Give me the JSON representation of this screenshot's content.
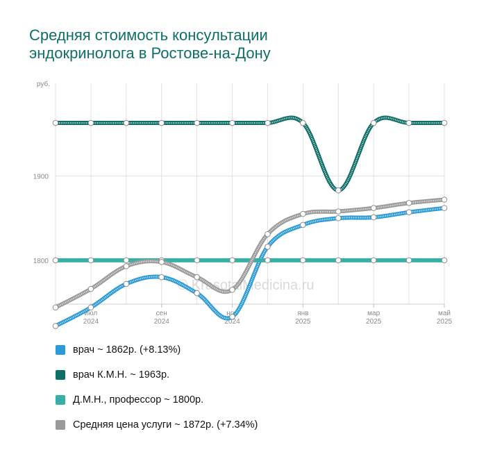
{
  "title": {
    "line1": "Средняя стоимость консультации",
    "line2": "эндокринолога в Ростове-на-Дону"
  },
  "watermark": "© KrasotaiMedicina.ru",
  "chart_data": {
    "type": "line",
    "ylabel": "руб.",
    "yticks": [
      1800,
      1900
    ],
    "ylim": [
      1748,
      2010
    ],
    "x": [
      "2024-06",
      "2024-07",
      "2024-08",
      "2024-09",
      "2024-10",
      "2024-11",
      "2024-12",
      "2025-01",
      "2025-02",
      "2025-03",
      "2025-04",
      "2025-05"
    ],
    "xticks": [
      {
        "label": "июл",
        "year": "2024",
        "index": 1
      },
      {
        "label": "сен",
        "year": "2024",
        "index": 3
      },
      {
        "label": "ноя",
        "year": "2024",
        "index": 5
      },
      {
        "label": "янв",
        "year": "2025",
        "index": 7
      },
      {
        "label": "мар",
        "year": "2025",
        "index": 9
      },
      {
        "label": "май",
        "year": "2025",
        "index": 11
      }
    ],
    "series": [
      {
        "name": "врач",
        "legend": "врач ~ 1862р. (+8.13%)",
        "color": "#2b9ad9",
        "hatched": true,
        "values": [
          1722,
          1744,
          1772,
          1780,
          1761,
          1733,
          1816,
          1842,
          1850,
          1851,
          1857,
          1862
        ]
      },
      {
        "name": "врач К.М.Н.",
        "legend": "врач К.М.Н. ~ 1963р.",
        "color": "#0e6f67",
        "hatched": true,
        "values": [
          1963,
          1963,
          1963,
          1963,
          1963,
          1963,
          1963,
          1963,
          1883,
          1963,
          1963,
          1963
        ]
      },
      {
        "name": "Д.М.Н., профессор",
        "legend": "Д.М.Н., профессор ~ 1800р.",
        "color": "#3aafa4",
        "hatched": false,
        "values": [
          1800,
          1800,
          1800,
          1800,
          1800,
          1800,
          1800,
          1800,
          1800,
          1800,
          1800,
          1800
        ]
      },
      {
        "name": "Средняя цена услуги",
        "legend": "Средняя цена услуги ~ 1872р. (+7.34%)",
        "color": "#9a9a9a",
        "hatched": true,
        "values": [
          1744,
          1766,
          1793,
          1798,
          1780,
          1765,
          1831,
          1855,
          1858,
          1862,
          1868,
          1872
        ]
      }
    ]
  }
}
